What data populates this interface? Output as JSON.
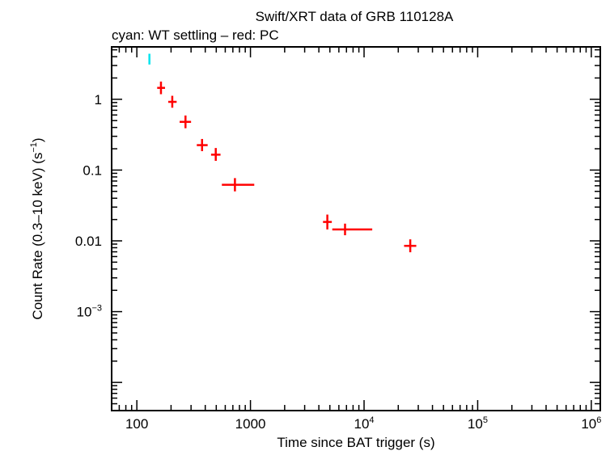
{
  "chart_data": {
    "type": "scatter",
    "title": "Swift/XRT data of GRB 110128A",
    "subtitle": "cyan: WT settling – red: PC",
    "xlabel": "Time since BAT trigger (s)",
    "ylabel": "Count Rate (0.3–10 keV) (s",
    "ylabel_sup": "−1",
    "ylabel_end": ")",
    "xscale": "log",
    "yscale": "log",
    "xlim": [
      60,
      1200000
    ],
    "ylim": [
      4e-05,
      5.5
    ],
    "xticks": [
      {
        "value": 100,
        "label": "100"
      },
      {
        "value": 1000,
        "label": "1000"
      },
      {
        "value": 10000,
        "base": "10",
        "exp": "4"
      },
      {
        "value": 100000,
        "base": "10",
        "exp": "5"
      },
      {
        "value": 1000000,
        "base": "10",
        "exp": "6"
      }
    ],
    "yticks": [
      {
        "value": 1,
        "label": "1"
      },
      {
        "value": 0.1,
        "label": "0.1"
      },
      {
        "value": 0.01,
        "label": "0.01"
      },
      {
        "value": 0.001,
        "base": "10",
        "exp": "−3"
      }
    ],
    "series": [
      {
        "name": "WT settling",
        "color": "#00e5ee",
        "points": [
          {
            "x": 129,
            "xerr": [
              127,
              131
            ],
            "y": 3.7,
            "yerr": [
              3.1,
              4.4
            ]
          }
        ]
      },
      {
        "name": "PC",
        "color": "#ff0000",
        "points": [
          {
            "x": 163,
            "xerr": [
              151,
              177
            ],
            "y": 1.45,
            "yerr": [
              1.18,
              1.78
            ]
          },
          {
            "x": 205,
            "xerr": [
              189,
              224
            ],
            "y": 0.92,
            "yerr": [
              0.76,
              1.12
            ]
          },
          {
            "x": 268,
            "xerr": [
              238,
              300
            ],
            "y": 0.48,
            "yerr": [
              0.39,
              0.59
            ]
          },
          {
            "x": 375,
            "xerr": [
              337,
              420
            ],
            "y": 0.225,
            "yerr": [
              0.185,
              0.275
            ]
          },
          {
            "x": 495,
            "xerr": [
              450,
              545
            ],
            "y": 0.165,
            "yerr": [
              0.135,
              0.205
            ]
          },
          {
            "x": 730,
            "xerr": [
              560,
              1080
            ],
            "y": 0.062,
            "yerr": [
              0.05,
              0.077
            ]
          },
          {
            "x": 4750,
            "xerr": [
              4350,
              5200
            ],
            "y": 0.0185,
            "yerr": [
              0.0145,
              0.0235
            ]
          },
          {
            "x": 6800,
            "xerr": [
              5250,
              11800
            ],
            "y": 0.0145,
            "yerr": [
              0.012,
              0.0175
            ]
          },
          {
            "x": 25500,
            "xerr": [
              22500,
              28800
            ],
            "y": 0.0085,
            "yerr": [
              0.0069,
              0.0105
            ]
          }
        ]
      }
    ]
  }
}
